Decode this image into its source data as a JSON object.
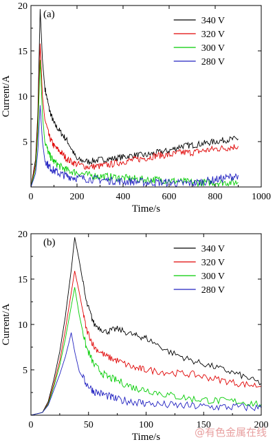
{
  "watermark": "@有色金属在线",
  "chart_data": [
    {
      "type": "line",
      "panel_label": "(a)",
      "xlabel": "Time/s",
      "ylabel": "Current/A",
      "xlim": [
        0,
        1000
      ],
      "ylim": [
        0,
        20
      ],
      "xticks": [
        0,
        200,
        400,
        600,
        800,
        1000
      ],
      "yticks": [
        5,
        10,
        15,
        20
      ],
      "legend_position": "top-right",
      "series": [
        {
          "name": "340 V",
          "color": "#000000",
          "x": [
            0,
            20,
            30,
            40,
            50,
            60,
            80,
            100,
            130,
            160,
            200,
            250,
            300,
            350,
            400,
            450,
            500,
            550,
            600,
            650,
            700,
            750,
            800,
            850,
            900
          ],
          "y": [
            0,
            3,
            8,
            19.6,
            14,
            11,
            8.5,
            7,
            6,
            5,
            3,
            2.8,
            3,
            3.1,
            3.3,
            3.5,
            3.5,
            3.8,
            4,
            4.5,
            4.6,
            4.8,
            5,
            5.2,
            5.3
          ]
        },
        {
          "name": "320 V",
          "color": "#e00000",
          "x": [
            0,
            20,
            30,
            40,
            50,
            60,
            80,
            100,
            130,
            160,
            200,
            250,
            300,
            350,
            400,
            450,
            500,
            550,
            600,
            650,
            700,
            750,
            800,
            850,
            900
          ],
          "y": [
            0,
            2.5,
            7,
            15.8,
            10,
            7.5,
            5.5,
            4.5,
            3.8,
            3,
            2.5,
            2.2,
            2.3,
            2.5,
            2.8,
            3,
            3.2,
            3.5,
            3.5,
            3.8,
            3.8,
            4,
            4.2,
            4.3,
            4.5
          ]
        },
        {
          "name": "300 V",
          "color": "#00cc00",
          "x": [
            0,
            20,
            30,
            40,
            50,
            60,
            80,
            100,
            130,
            160,
            200,
            250,
            300,
            350,
            400,
            450,
            500,
            550,
            600,
            650,
            700,
            750,
            800,
            850,
            900
          ],
          "y": [
            0,
            2,
            6,
            14,
            8,
            5,
            3.5,
            2.8,
            2.2,
            1.8,
            1.6,
            1.3,
            1.2,
            1.1,
            1,
            0.9,
            0.8,
            0.8,
            0.7,
            0.6,
            0.5,
            0.5,
            0.5,
            0.5,
            0.5
          ]
        },
        {
          "name": "280 V",
          "color": "#2020c0",
          "x": [
            0,
            20,
            30,
            40,
            50,
            60,
            80,
            100,
            130,
            160,
            200,
            250,
            300,
            350,
            400,
            450,
            500,
            550,
            600,
            650,
            700,
            750,
            800,
            850,
            900
          ],
          "y": [
            0,
            1.5,
            4,
            9,
            5,
            3,
            2.2,
            1.8,
            1.4,
            1.2,
            1,
            0.9,
            0.8,
            0.7,
            0.6,
            0.6,
            0.5,
            0.5,
            0.5,
            0.4,
            0.4,
            0.6,
            0.8,
            1,
            1.3
          ]
        }
      ]
    },
    {
      "type": "line",
      "panel_label": "(b)",
      "xlabel": "Time/s",
      "ylabel": "Current/A",
      "xlim": [
        0,
        200
      ],
      "ylim": [
        0,
        20
      ],
      "xticks": [
        0,
        50,
        100,
        150,
        200
      ],
      "yticks": [
        5,
        10,
        15,
        20
      ],
      "legend_position": "top-right",
      "series": [
        {
          "name": "340 V",
          "color": "#000000",
          "x": [
            0,
            10,
            15,
            20,
            25,
            30,
            35,
            38,
            42,
            48,
            55,
            65,
            75,
            90,
            100,
            120,
            140,
            160,
            180,
            200
          ],
          "y": [
            0,
            0.3,
            1.5,
            4,
            7,
            11,
            16,
            19.6,
            17,
            12.5,
            10,
            9.2,
            9.5,
            8.8,
            8.5,
            7,
            6,
            5.3,
            4.5,
            3.5
          ]
        },
        {
          "name": "320 V",
          "color": "#e00000",
          "x": [
            0,
            10,
            15,
            20,
            25,
            30,
            35,
            38,
            42,
            48,
            55,
            65,
            75,
            90,
            100,
            120,
            140,
            160,
            180,
            200
          ],
          "y": [
            0,
            0.3,
            1.3,
            3.5,
            6,
            9.5,
            13.5,
            15.9,
            13.5,
            9.5,
            7.5,
            6.5,
            6,
            5.2,
            5,
            4.7,
            4.5,
            4,
            3.5,
            3.2
          ]
        },
        {
          "name": "300 V",
          "color": "#00cc00",
          "x": [
            0,
            10,
            15,
            20,
            25,
            30,
            35,
            38,
            42,
            48,
            55,
            65,
            75,
            90,
            100,
            120,
            140,
            160,
            180,
            200
          ],
          "y": [
            0,
            0.3,
            1.2,
            3.2,
            5.5,
            8.5,
            12,
            14.1,
            11,
            7.5,
            5.5,
            4.3,
            3.8,
            3,
            2.8,
            2.2,
            1.8,
            1.6,
            1.5,
            1.2
          ]
        },
        {
          "name": "280 V",
          "color": "#2020c0",
          "x": [
            0,
            10,
            15,
            20,
            25,
            30,
            33,
            35,
            38,
            42,
            48,
            55,
            65,
            75,
            90,
            100,
            120,
            140,
            160,
            180,
            200
          ],
          "y": [
            0,
            0.3,
            1.1,
            2.8,
            4.5,
            6.5,
            8,
            9.1,
            7,
            4.8,
            3.5,
            2.6,
            2.2,
            1.7,
            1.5,
            1.3,
            1.1,
            1,
            0.9,
            0.9,
            0.8
          ]
        }
      ]
    }
  ]
}
